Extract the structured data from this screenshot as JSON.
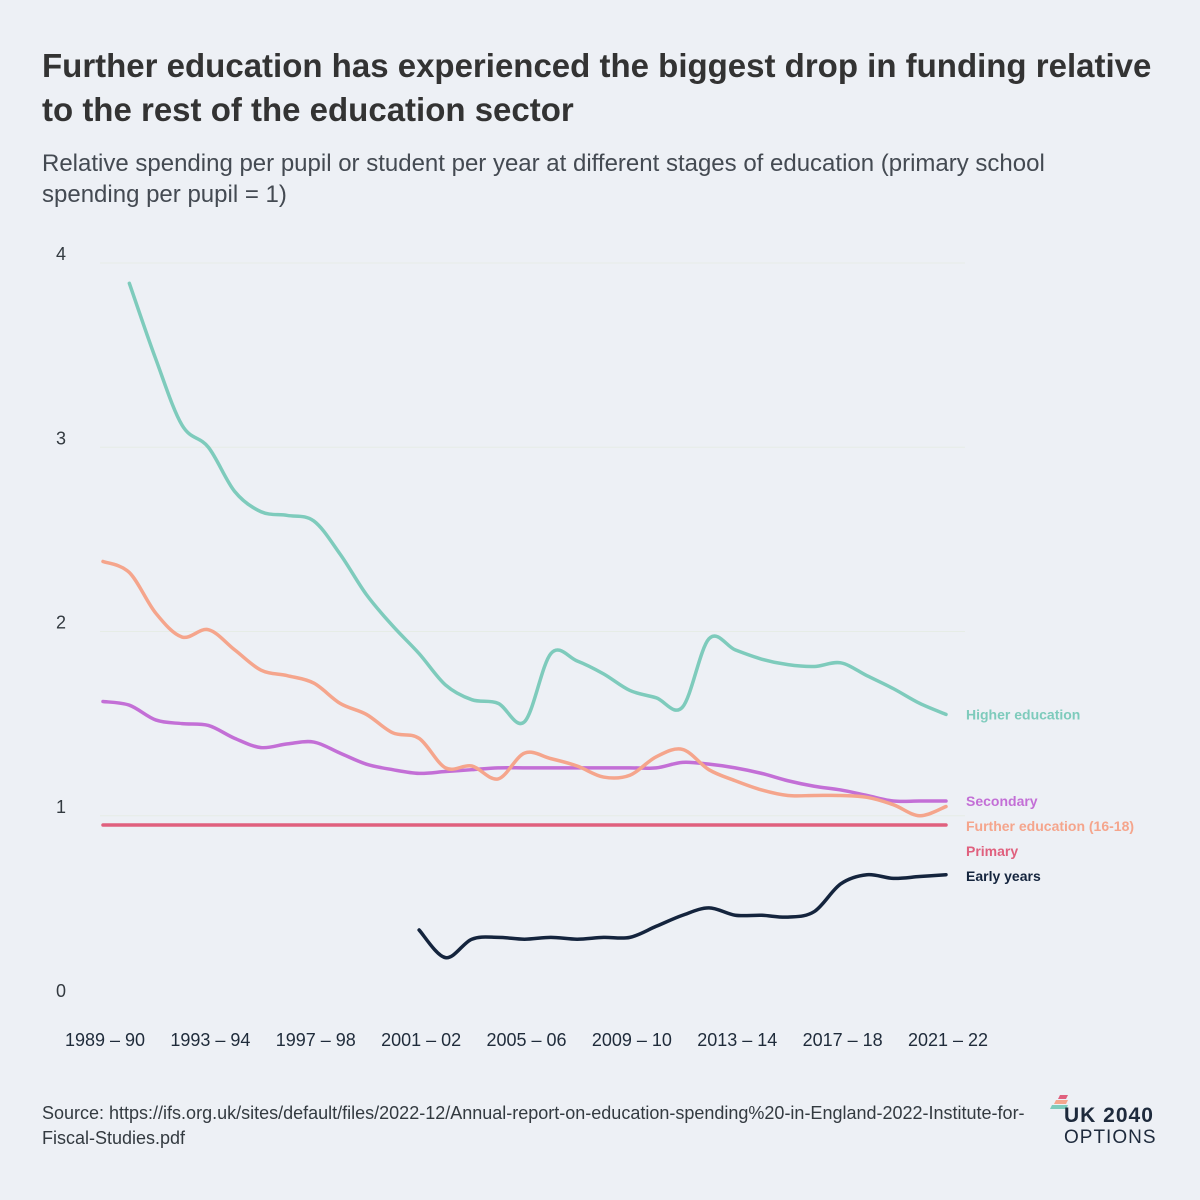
{
  "chart_data": {
    "type": "line",
    "title": "Further education has experienced the biggest drop in funding relative to the rest of the education sector",
    "subtitle": "Relative spending per pupil or student per year at different stages of education (primary school spending per pupil = 1)",
    "xlabel": "",
    "ylabel": "",
    "ylim": [
      0,
      4
    ],
    "yticks": [
      "0",
      "1",
      "2",
      "3",
      "4"
    ],
    "x_tick_labels": [
      "1989 – 90",
      "1993 – 94",
      "1997 – 98",
      "2001 – 02",
      "2005 – 06",
      "2009 – 10",
      "2013 – 14",
      "2017 – 18",
      "2021 – 22"
    ],
    "x_start_year": 1989,
    "x_end_year": 2021,
    "grid": "horizontal",
    "series": [
      {
        "name": "Higher education",
        "color": "#7ecbbc",
        "points": [
          [
            1990,
            3.89
          ],
          [
            1991,
            3.48
          ],
          [
            1992,
            3.12
          ],
          [
            1993,
            3.0
          ],
          [
            1994,
            2.76
          ],
          [
            1995,
            2.65
          ],
          [
            1996,
            2.63
          ],
          [
            1997,
            2.6
          ],
          [
            1998,
            2.42
          ],
          [
            1999,
            2.2
          ],
          [
            2000,
            2.03
          ],
          [
            2001,
            1.88
          ],
          [
            2002,
            1.71
          ],
          [
            2003,
            1.63
          ],
          [
            2004,
            1.61
          ],
          [
            2005,
            1.51
          ],
          [
            2006,
            1.88
          ],
          [
            2007,
            1.84
          ],
          [
            2008,
            1.77
          ],
          [
            2009,
            1.68
          ],
          [
            2010,
            1.64
          ],
          [
            2011,
            1.59
          ],
          [
            2012,
            1.96
          ],
          [
            2013,
            1.9
          ],
          [
            2014,
            1.85
          ],
          [
            2015,
            1.82
          ],
          [
            2016,
            1.81
          ],
          [
            2017,
            1.83
          ],
          [
            2018,
            1.76
          ],
          [
            2019,
            1.69
          ],
          [
            2020,
            1.61
          ],
          [
            2021,
            1.55
          ]
        ]
      },
      {
        "name": "Secondary",
        "color": "#c36fd6",
        "points": [
          [
            1989,
            1.62
          ],
          [
            1990,
            1.6
          ],
          [
            1991,
            1.52
          ],
          [
            1992,
            1.5
          ],
          [
            1993,
            1.49
          ],
          [
            1994,
            1.42
          ],
          [
            1995,
            1.37
          ],
          [
            1996,
            1.39
          ],
          [
            1997,
            1.4
          ],
          [
            1998,
            1.34
          ],
          [
            1999,
            1.28
          ],
          [
            2000,
            1.25
          ],
          [
            2001,
            1.23
          ],
          [
            2002,
            1.24
          ],
          [
            2003,
            1.25
          ],
          [
            2004,
            1.26
          ],
          [
            2005,
            1.26
          ],
          [
            2006,
            1.26
          ],
          [
            2007,
            1.26
          ],
          [
            2008,
            1.26
          ],
          [
            2009,
            1.26
          ],
          [
            2010,
            1.26
          ],
          [
            2011,
            1.29
          ],
          [
            2012,
            1.28
          ],
          [
            2013,
            1.26
          ],
          [
            2014,
            1.23
          ],
          [
            2015,
            1.19
          ],
          [
            2016,
            1.16
          ],
          [
            2017,
            1.14
          ],
          [
            2018,
            1.11
          ],
          [
            2019,
            1.08
          ],
          [
            2020,
            1.08
          ],
          [
            2021,
            1.08
          ]
        ]
      },
      {
        "name": "Further education (16-18)",
        "color": "#f5a58c",
        "points": [
          [
            1989,
            2.38
          ],
          [
            1990,
            2.32
          ],
          [
            1991,
            2.1
          ],
          [
            1992,
            1.97
          ],
          [
            1993,
            2.01
          ],
          [
            1994,
            1.9
          ],
          [
            1995,
            1.79
          ],
          [
            1996,
            1.76
          ],
          [
            1997,
            1.72
          ],
          [
            1998,
            1.61
          ],
          [
            1999,
            1.55
          ],
          [
            2000,
            1.45
          ],
          [
            2001,
            1.42
          ],
          [
            2002,
            1.26
          ],
          [
            2003,
            1.27
          ],
          [
            2004,
            1.2
          ],
          [
            2005,
            1.34
          ],
          [
            2006,
            1.31
          ],
          [
            2007,
            1.27
          ],
          [
            2008,
            1.21
          ],
          [
            2009,
            1.22
          ],
          [
            2010,
            1.32
          ],
          [
            2011,
            1.36
          ],
          [
            2012,
            1.25
          ],
          [
            2013,
            1.19
          ],
          [
            2014,
            1.14
          ],
          [
            2015,
            1.11
          ],
          [
            2016,
            1.11
          ],
          [
            2017,
            1.11
          ],
          [
            2018,
            1.1
          ],
          [
            2019,
            1.06
          ],
          [
            2020,
            1.0
          ],
          [
            2021,
            1.05
          ]
        ]
      },
      {
        "name": "Primary",
        "color": "#e0607e",
        "points": [
          [
            1989,
            0.95
          ],
          [
            2021,
            0.95
          ]
        ]
      },
      {
        "name": "Early years",
        "color": "#14243d",
        "points": [
          [
            2001,
            0.38
          ],
          [
            2002,
            0.23
          ],
          [
            2003,
            0.33
          ],
          [
            2004,
            0.34
          ],
          [
            2005,
            0.33
          ],
          [
            2006,
            0.34
          ],
          [
            2007,
            0.33
          ],
          [
            2008,
            0.34
          ],
          [
            2009,
            0.34
          ],
          [
            2010,
            0.4
          ],
          [
            2011,
            0.46
          ],
          [
            2012,
            0.5
          ],
          [
            2013,
            0.46
          ],
          [
            2014,
            0.46
          ],
          [
            2015,
            0.45
          ],
          [
            2016,
            0.48
          ],
          [
            2017,
            0.63
          ],
          [
            2018,
            0.68
          ],
          [
            2019,
            0.66
          ],
          [
            2020,
            0.67
          ],
          [
            2021,
            0.68
          ]
        ]
      }
    ]
  },
  "source_text": "Source: https://ifs.org.uk/sites/default/files/2022-12/Annual-report-on-education-spending%20-in-England-2022-Institute-for-Fiscal-Studies.pdf",
  "logo": {
    "line1": "UK 2040",
    "line2": "OPTIONS"
  }
}
